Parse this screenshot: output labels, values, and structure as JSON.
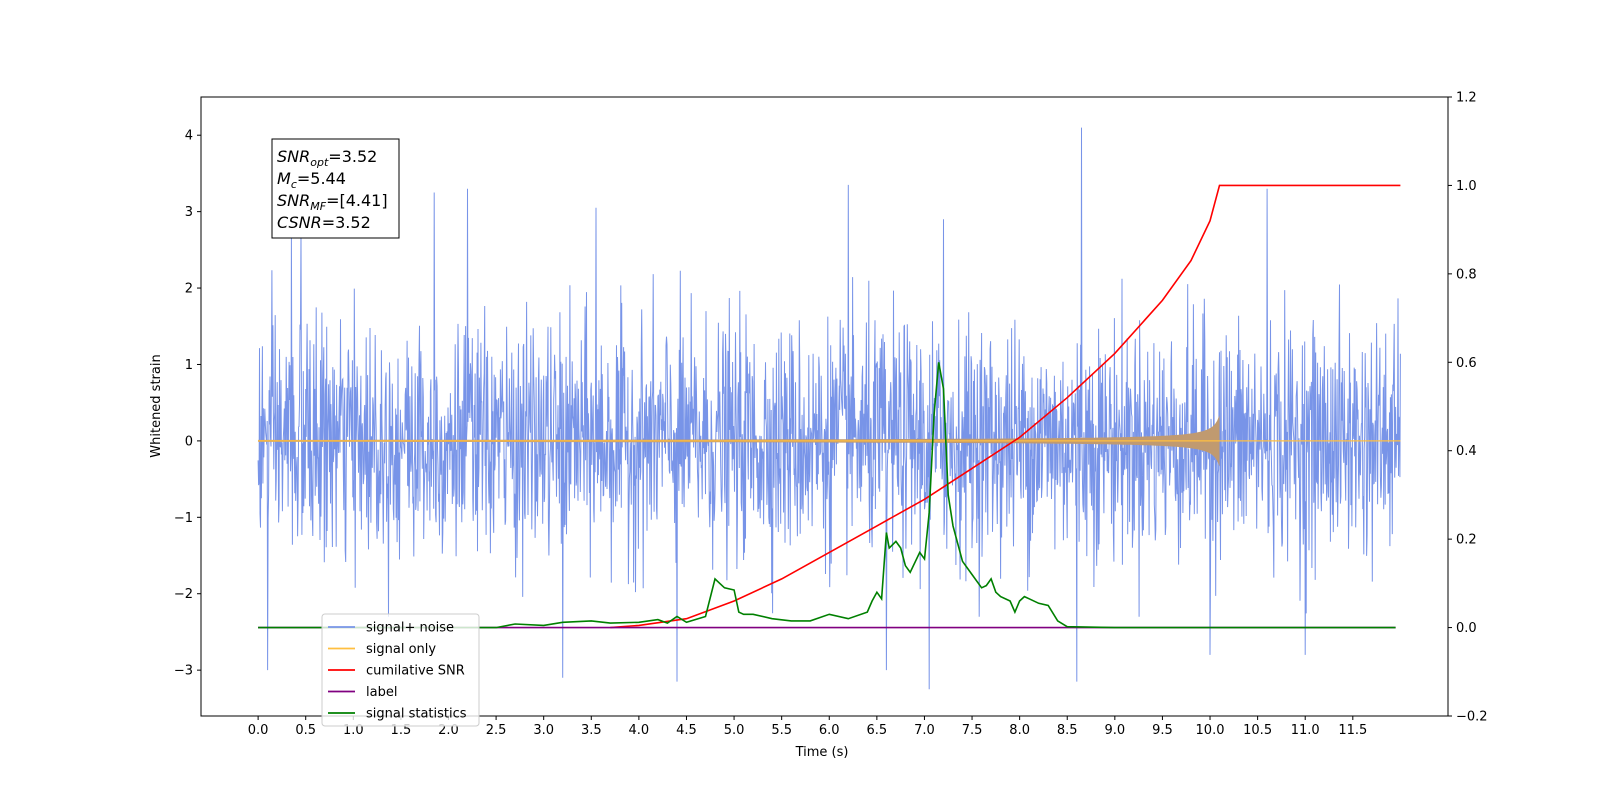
{
  "chart_data": {
    "type": "line",
    "xlabel": "Time (s)",
    "ylabel": "Whitened strain",
    "xlim": [
      -0.6,
      12.5
    ],
    "ylim": [
      -3.6,
      4.5
    ],
    "y2lim": [
      -0.2,
      1.2
    ],
    "x_ticks": [
      0.0,
      0.5,
      1.0,
      1.5,
      2.0,
      2.5,
      3.0,
      3.5,
      4.0,
      4.5,
      5.0,
      5.5,
      6.0,
      6.5,
      7.0,
      7.5,
      8.0,
      8.5,
      9.0,
      9.5,
      10.0,
      10.5,
      11.0,
      11.5
    ],
    "x_tick_labels": [
      "0.0",
      "0.5",
      "1.0",
      "1.5",
      "2.0",
      "2.5",
      "3.0",
      "3.5",
      "4.0",
      "4.5",
      "5.0",
      "5.5",
      "6.0",
      "6.5",
      "7.0",
      "7.5",
      "8.0",
      "8.5",
      "9.0",
      "9.5",
      "10.0",
      "10.5",
      "11.0",
      "11.5"
    ],
    "y_ticks": [
      4,
      3,
      2,
      1,
      0,
      -1,
      -2,
      -3
    ],
    "y_tick_labels": [
      "4",
      "3",
      "2",
      "1",
      "0",
      "−1",
      "−2",
      "−3"
    ],
    "y2_ticks": [
      1.2,
      1.0,
      0.8,
      0.6,
      0.4,
      0.2,
      0.0,
      -0.2
    ],
    "y2_tick_labels": [
      "1.2",
      "1.0",
      "0.8",
      "0.6",
      "0.4",
      "0.2",
      "0.0",
      "−0.2"
    ],
    "legend_position": "lower-left",
    "annotation": {
      "lines": [
        {
          "sym": "SNR",
          "sub": "opt",
          "val": "=3.52"
        },
        {
          "sym": "M",
          "sub": "c",
          "val": "=5.44"
        },
        {
          "sym": "SNR",
          "sub": "MF",
          "val": "=[4.41]"
        },
        {
          "sym": "CSNR",
          "sub": "",
          "val": "=3.52"
        }
      ]
    },
    "series": [
      {
        "name": "signal+ noise",
        "color": "#7894e8",
        "axis": "left",
        "style": "noise",
        "x_range": [
          0.0,
          12.0
        ],
        "envelope_typical": [
          -1.6,
          1.6
        ],
        "spikes": [
          {
            "x": 0.35,
            "y": 2.7
          },
          {
            "x": 0.45,
            "y": 2.75
          },
          {
            "x": 1.85,
            "y": 3.25
          },
          {
            "x": 2.2,
            "y": 3.3
          },
          {
            "x": 3.55,
            "y": 3.05
          },
          {
            "x": 6.2,
            "y": 3.35
          },
          {
            "x": 7.2,
            "y": 2.9
          },
          {
            "x": 8.65,
            "y": 4.1
          },
          {
            "x": 10.6,
            "y": 3.3
          },
          {
            "x": 0.1,
            "y": -3.0
          },
          {
            "x": 3.2,
            "y": -3.1
          },
          {
            "x": 4.4,
            "y": -3.15
          },
          {
            "x": 7.05,
            "y": -3.25
          },
          {
            "x": 8.6,
            "y": -3.15
          },
          {
            "x": 6.6,
            "y": -3.0
          },
          {
            "x": 10.0,
            "y": -2.8
          },
          {
            "x": 11.0,
            "y": -2.8
          }
        ]
      },
      {
        "name": "signal only",
        "color": "#ffbf40",
        "axis": "left",
        "style": "chirp",
        "x_range": [
          0.0,
          12.0
        ],
        "merger_time": 10.1,
        "peak_amplitude": 0.35
      },
      {
        "name": "cumilative SNR",
        "color": "#ff0000",
        "axis": "right",
        "x": [
          3.7,
          4.0,
          4.5,
          5.0,
          5.5,
          6.0,
          6.5,
          7.0,
          7.5,
          8.0,
          8.5,
          9.0,
          9.5,
          9.8,
          10.0,
          10.1,
          12.0
        ],
        "y": [
          0.0,
          0.005,
          0.02,
          0.06,
          0.11,
          0.17,
          0.23,
          0.29,
          0.36,
          0.43,
          0.52,
          0.62,
          0.74,
          0.83,
          0.92,
          1.0,
          1.0
        ]
      },
      {
        "name": "label",
        "color": "#800080",
        "axis": "right",
        "x": [
          0.0,
          11.95
        ],
        "y": [
          0.0,
          0.0
        ]
      },
      {
        "name": "signal statistics",
        "color": "#008000",
        "axis": "right",
        "x": [
          0.0,
          2.5,
          2.7,
          3.0,
          3.2,
          3.5,
          3.7,
          4.0,
          4.2,
          4.3,
          4.4,
          4.5,
          4.7,
          4.8,
          4.85,
          4.9,
          5.0,
          5.05,
          5.1,
          5.2,
          5.4,
          5.6,
          5.8,
          6.0,
          6.2,
          6.4,
          6.45,
          6.5,
          6.55,
          6.6,
          6.63,
          6.7,
          6.75,
          6.8,
          6.85,
          6.95,
          7.0,
          7.05,
          7.1,
          7.15,
          7.2,
          7.25,
          7.3,
          7.4,
          7.5,
          7.6,
          7.65,
          7.7,
          7.75,
          7.8,
          7.9,
          7.95,
          8.0,
          8.05,
          8.1,
          8.2,
          8.3,
          8.4,
          8.5,
          9.0,
          11.95
        ],
        "y": [
          0.0,
          0.0,
          0.008,
          0.005,
          0.012,
          0.015,
          0.01,
          0.012,
          0.018,
          0.01,
          0.025,
          0.012,
          0.025,
          0.11,
          0.1,
          0.09,
          0.085,
          0.035,
          0.03,
          0.03,
          0.02,
          0.015,
          0.015,
          0.03,
          0.02,
          0.035,
          0.06,
          0.08,
          0.065,
          0.215,
          0.18,
          0.195,
          0.18,
          0.14,
          0.125,
          0.17,
          0.155,
          0.26,
          0.48,
          0.6,
          0.54,
          0.3,
          0.23,
          0.15,
          0.12,
          0.09,
          0.095,
          0.11,
          0.08,
          0.07,
          0.06,
          0.035,
          0.06,
          0.07,
          0.065,
          0.055,
          0.05,
          0.015,
          0.002,
          0.0,
          0.0
        ]
      }
    ]
  }
}
